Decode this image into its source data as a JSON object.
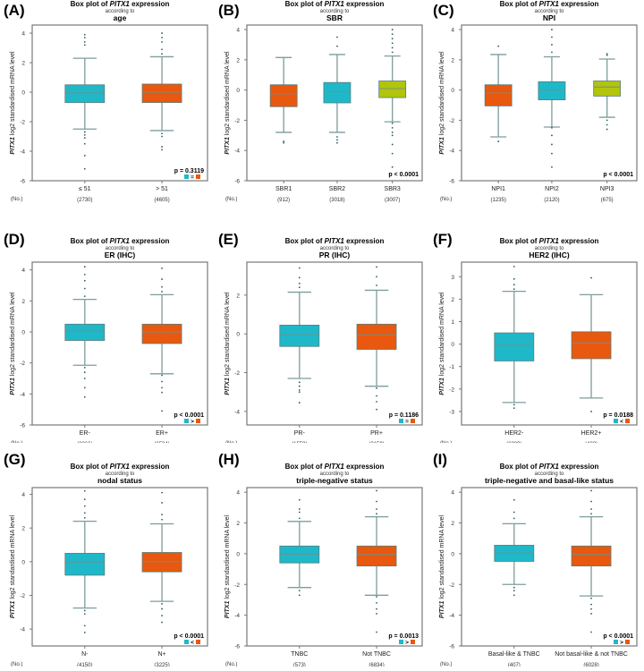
{
  "colors": {
    "cyan": "#1fb8c9",
    "orange": "#e8580e",
    "lime": "#b2c40b",
    "whisker": "#7e9c9c",
    "frame": "#777777",
    "outlier": "#2e5a5a"
  },
  "common": {
    "title_prefix": "Box plot of ",
    "gene": "PITX1",
    "title_suffix": " expression",
    "according": "according to",
    "ylabel_suffix": " log2 standardised mRNA level",
    "count_label": "(No.)"
  },
  "chart_data": [
    {
      "type": "box",
      "panel": "(A)",
      "variable": "age",
      "ylim": [
        -6,
        4.55
      ],
      "yticks": [
        4,
        2,
        0,
        -2,
        -4,
        -6
      ],
      "pvalue": "p = 0.3119",
      "legend_sign": "=",
      "groups": [
        {
          "name": "≤ 51",
          "n": "(2730)",
          "color": "cyan",
          "q1": -0.7,
          "median": -0.05,
          "q3": 0.5,
          "whisker_low": -2.5,
          "whisker_high": 2.3,
          "outliers": [
            3.2,
            3.4,
            3.7,
            3.9,
            -2.7,
            -2.9,
            -3.1,
            -3.5,
            -4.3,
            -5.2
          ]
        },
        {
          "name": "> 51",
          "n": "(4605)",
          "color": "orange",
          "q1": -0.7,
          "median": 0,
          "q3": 0.55,
          "whisker_low": -2.6,
          "whisker_high": 2.4,
          "outliers": [
            2.6,
            2.9,
            3.4,
            3.7,
            4.0,
            -2.8,
            -3.0,
            -3.7,
            -3.9
          ]
        }
      ]
    },
    {
      "type": "box",
      "panel": "(B)",
      "variable": "SBR",
      "ylim": [
        -6,
        4.3
      ],
      "yticks": [
        4,
        2,
        0,
        -2,
        -4,
        -6
      ],
      "pvalue": "p < 0.0001",
      "legend_sign": null,
      "groups": [
        {
          "name": "SBR1",
          "n": "(912)",
          "color": "orange",
          "q1": -1.1,
          "median": -0.25,
          "q3": 0.35,
          "whisker_low": -2.8,
          "whisker_high": 2.15,
          "outliers": [
            -3.4,
            -3.5
          ]
        },
        {
          "name": "SBR2",
          "n": "(3018)",
          "color": "cyan",
          "q1": -0.85,
          "median": -0.1,
          "q3": 0.5,
          "whisker_low": -2.8,
          "whisker_high": 2.35,
          "outliers": [
            2.9,
            3.5,
            -3.1,
            -3.3,
            -3.5
          ]
        },
        {
          "name": "SBR3",
          "n": "(3007)",
          "color": "lime",
          "q1": -0.5,
          "median": 0.1,
          "q3": 0.6,
          "whisker_low": -2.1,
          "whisker_high": 2.25,
          "outliers": [
            2.5,
            2.8,
            3.1,
            3.4,
            3.7,
            4.0,
            -2.2,
            -2.5,
            -2.8,
            -3.0,
            -3.6,
            -4.2,
            -5.1
          ]
        }
      ]
    },
    {
      "type": "box",
      "panel": "(C)",
      "variable": "NPI",
      "ylim": [
        -6,
        4.3
      ],
      "yticks": [
        4,
        2,
        0,
        -2,
        -4,
        -6
      ],
      "pvalue": "p < 0.0001",
      "legend_sign": null,
      "groups": [
        {
          "name": "NPI1",
          "n": "(1235)",
          "color": "orange",
          "q1": -1.05,
          "median": -0.2,
          "q3": 0.35,
          "whisker_low": -3.1,
          "whisker_high": 2.35,
          "outliers": [
            2.9,
            -3.4
          ]
        },
        {
          "name": "NPI2",
          "n": "(2120)",
          "color": "cyan",
          "q1": -0.65,
          "median": 0,
          "q3": 0.55,
          "whisker_low": -2.45,
          "whisker_high": 2.2,
          "outliers": [
            2.5,
            3.0,
            3.5,
            4.0,
            -2.5,
            -3.0,
            -3.6,
            -4.2,
            -5.1
          ]
        },
        {
          "name": "NPI3",
          "n": "(675)",
          "color": "lime",
          "q1": -0.4,
          "median": 0.2,
          "q3": 0.6,
          "whisker_low": -1.8,
          "whisker_high": 2.05,
          "outliers": [
            2.3,
            2.4,
            -2.0,
            -2.3,
            -2.6
          ]
        }
      ]
    },
    {
      "type": "box",
      "panel": "(D)",
      "variable": "ER (IHC)",
      "ylim": [
        -6,
        4.5
      ],
      "yticks": [
        4,
        2,
        0,
        -2,
        -4,
        -6
      ],
      "pvalue": "p < 0.0001",
      "legend_sign": ">",
      "groups": [
        {
          "name": "ER-",
          "n": "(2366)",
          "color": "cyan",
          "q1": -0.55,
          "median": 0.05,
          "q3": 0.5,
          "whisker_low": -2.15,
          "whisker_high": 2.1,
          "outliers": [
            2.3,
            2.8,
            3.3,
            3.7,
            4.2,
            -2.3,
            -2.6,
            -3.0,
            -3.6,
            -4.2
          ]
        },
        {
          "name": "ER+",
          "n": "(6534)",
          "color": "orange",
          "q1": -0.75,
          "median": 0,
          "q3": 0.5,
          "whisker_low": -2.7,
          "whisker_high": 2.4,
          "outliers": [
            2.6,
            2.9,
            3.4,
            4.1,
            -2.8,
            -3.2,
            -3.6,
            -3.9,
            -5.1
          ]
        }
      ]
    },
    {
      "type": "box",
      "panel": "(E)",
      "variable": "PR (IHC)",
      "ylim": [
        -4.7,
        3.7
      ],
      "yticks": [
        2,
        0,
        -2,
        -4
      ],
      "pvalue": "p = 0.1186",
      "legend_sign": "=",
      "groups": [
        {
          "name": "PR-",
          "n": "(1559)",
          "color": "cyan",
          "q1": -0.65,
          "median": -0.05,
          "q3": 0.45,
          "whisker_low": -2.3,
          "whisker_high": 2.15,
          "outliers": [
            2.4,
            2.6,
            2.9,
            3.4,
            -2.5,
            -2.7,
            -2.9,
            -3.0,
            -3.55
          ]
        },
        {
          "name": "PR+",
          "n": "(2159)",
          "color": "orange",
          "q1": -0.8,
          "median": -0.05,
          "q3": 0.5,
          "whisker_low": -2.7,
          "whisker_high": 2.25,
          "outliers": [
            2.5,
            2.95,
            3.45,
            -2.8,
            -3.2,
            -3.5,
            -3.9
          ]
        }
      ]
    },
    {
      "type": "box",
      "panel": "(F)",
      "variable": "HER2 (IHC)",
      "ylim": [
        -3.6,
        3.65
      ],
      "yticks": [
        3,
        2,
        1,
        0,
        -1,
        -2,
        -3
      ],
      "pvalue": "p = 0.0188",
      "legend_sign": "<",
      "groups": [
        {
          "name": "HER2-",
          "n": "(2389)",
          "color": "cyan",
          "q1": -0.75,
          "median": -0.05,
          "q3": 0.5,
          "whisker_low": -2.6,
          "whisker_high": 2.35,
          "outliers": [
            2.45,
            2.65,
            2.9,
            3.45,
            -2.7,
            -2.85
          ]
        },
        {
          "name": "HER2+",
          "n": "(438)",
          "color": "orange",
          "q1": -0.65,
          "median": 0.05,
          "q3": 0.55,
          "whisker_low": -2.4,
          "whisker_high": 2.2,
          "outliers": [
            2.95,
            -3.0
          ]
        }
      ]
    },
    {
      "type": "box",
      "panel": "(G)",
      "variable": "nodal status",
      "ylim": [
        -5,
        4.4
      ],
      "yticks": [
        4,
        2,
        0,
        -2,
        -4
      ],
      "pvalue": "p < 0.0001",
      "legend_sign": "<",
      "groups": [
        {
          "name": "N-",
          "n": "(4150)",
          "color": "cyan",
          "q1": -0.8,
          "median": -0.05,
          "q3": 0.5,
          "whisker_low": -2.75,
          "whisker_high": 2.4,
          "outliers": [
            2.6,
            2.9,
            3.3,
            3.7,
            4.2,
            -2.9,
            -3.1,
            -3.8,
            -4.2
          ]
        },
        {
          "name": "N+",
          "n": "(3225)",
          "color": "orange",
          "q1": -0.6,
          "median": 0,
          "q3": 0.55,
          "whisker_low": -2.35,
          "whisker_high": 2.25,
          "outliers": [
            2.5,
            2.8,
            3.5,
            4.1,
            -2.5,
            -2.8,
            -3.2,
            -3.6
          ]
        }
      ]
    },
    {
      "type": "box",
      "panel": "(H)",
      "variable": "triple-negative status",
      "ylim": [
        -6,
        4.3
      ],
      "yticks": [
        4,
        2,
        0,
        -2,
        -4,
        -6
      ],
      "pvalue": "p = 0.0013",
      "legend_sign": ">",
      "groups": [
        {
          "name": "TNBC",
          "n": "(573)",
          "color": "cyan",
          "q1": -0.6,
          "median": -0.05,
          "q3": 0.5,
          "whisker_low": -2.2,
          "whisker_high": 2.1,
          "outliers": [
            2.3,
            2.7,
            2.9,
            3.5,
            -2.4,
            -2.7
          ]
        },
        {
          "name": "Not TNBC",
          "n": "(6834)",
          "color": "orange",
          "q1": -0.8,
          "median": -0.05,
          "q3": 0.5,
          "whisker_low": -2.7,
          "whisker_high": 2.4,
          "outliers": [
            2.6,
            2.9,
            3.4,
            4.1,
            -2.8,
            -3.2,
            -3.6,
            -3.9,
            -5.1
          ]
        }
      ]
    },
    {
      "type": "box",
      "panel": "(I)",
      "variable": "triple-negative and basal-like status",
      "ylim": [
        -6,
        4.3
      ],
      "yticks": [
        4,
        2,
        0,
        -2,
        -4,
        -6
      ],
      "pvalue": "p < 0.0001",
      "legend_sign": ">",
      "groups": [
        {
          "name": "Basal-like & TNBC",
          "n": "(407)",
          "color": "cyan",
          "q1": -0.5,
          "median": 0.05,
          "q3": 0.55,
          "whisker_low": -2.0,
          "whisker_high": 1.95,
          "outliers": [
            2.3,
            2.7,
            3.5,
            -2.2,
            -2.4,
            -2.7
          ]
        },
        {
          "name": "Not basal-like & not TNBC",
          "n": "(6028)",
          "color": "orange",
          "q1": -0.8,
          "median": -0.05,
          "q3": 0.5,
          "whisker_low": -2.75,
          "whisker_high": 2.4,
          "outliers": [
            2.6,
            2.9,
            3.4,
            4.1,
            -2.9,
            -3.3,
            -3.6,
            -3.9,
            -5.1
          ]
        }
      ]
    }
  ]
}
